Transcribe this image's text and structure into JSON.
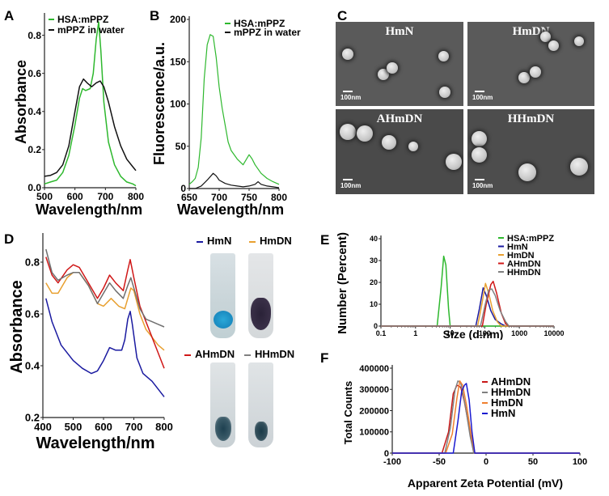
{
  "panels": {
    "A": {
      "label": "A"
    },
    "B": {
      "label": "B"
    },
    "C": {
      "label": "C"
    },
    "D": {
      "label": "D"
    },
    "E": {
      "label": "E"
    },
    "F": {
      "label": "F"
    }
  },
  "sem": {
    "images": [
      {
        "title": "HmN",
        "scale": "100nm"
      },
      {
        "title": "HmDN",
        "scale": "100nm"
      },
      {
        "title": "AHmDN",
        "scale": "100nm"
      },
      {
        "title": "HHmDN",
        "scale": "100nm"
      }
    ]
  },
  "tubes": {
    "legend": [
      {
        "label": "HmN",
        "color": "#1a1aa0"
      },
      {
        "label": "HmDN",
        "color": "#e8a030"
      },
      {
        "label": "AHmDN",
        "color": "#d01818"
      },
      {
        "label": "HHmDN",
        "color": "#808080"
      }
    ]
  },
  "chart_data": [
    {
      "id": "A",
      "type": "line",
      "title": "",
      "xlabel": "Wavelength/nm",
      "ylabel": "Absorbance",
      "xlim": [
        500,
        800
      ],
      "ylim": [
        0.0,
        0.9
      ],
      "xticks": [
        "500",
        "600",
        "700",
        "800"
      ],
      "yticks": [
        "0.0",
        "0.2",
        "0.4",
        "0.6",
        "0.8"
      ],
      "legend_position": "top-left",
      "series": [
        {
          "name": "HSA:mPPZ",
          "color": "#2eb82e",
          "x": [
            500,
            520,
            540,
            560,
            580,
            600,
            615,
            625,
            635,
            650,
            660,
            670,
            678,
            685,
            695,
            710,
            730,
            750,
            770,
            790,
            800
          ],
          "y": [
            0.02,
            0.03,
            0.04,
            0.08,
            0.17,
            0.33,
            0.47,
            0.52,
            0.51,
            0.52,
            0.6,
            0.78,
            0.87,
            0.72,
            0.45,
            0.24,
            0.12,
            0.06,
            0.03,
            0.02,
            0.01
          ]
        },
        {
          "name": "mPPZ in water",
          "color": "#111111",
          "x": [
            500,
            520,
            540,
            560,
            580,
            600,
            615,
            628,
            640,
            655,
            670,
            683,
            695,
            710,
            730,
            750,
            770,
            790,
            800
          ],
          "y": [
            0.06,
            0.065,
            0.08,
            0.12,
            0.22,
            0.4,
            0.53,
            0.57,
            0.55,
            0.53,
            0.55,
            0.56,
            0.53,
            0.45,
            0.32,
            0.22,
            0.15,
            0.11,
            0.09
          ]
        }
      ]
    },
    {
      "id": "B",
      "type": "line",
      "title": "",
      "xlabel": "Wavelength/nm",
      "ylabel": "Fluorescence/a.u.",
      "xlim": [
        650,
        800
      ],
      "ylim": [
        0,
        200
      ],
      "xticks": [
        "650",
        "700",
        "750",
        "800"
      ],
      "yticks": [
        "0",
        "50",
        "100",
        "150",
        "200"
      ],
      "legend_position": "top-right",
      "series": [
        {
          "name": "HSA:mPPZ",
          "color": "#2eb82e",
          "x": [
            650,
            655,
            660,
            665,
            670,
            675,
            680,
            685,
            690,
            695,
            700,
            705,
            710,
            715,
            720,
            730,
            740,
            750,
            755,
            760,
            770,
            780,
            790,
            800
          ],
          "y": [
            5,
            8,
            12,
            25,
            60,
            130,
            170,
            182,
            180,
            155,
            120,
            95,
            75,
            55,
            45,
            35,
            28,
            40,
            35,
            28,
            18,
            12,
            8,
            5
          ]
        },
        {
          "name": "mPPZ in water",
          "color": "#111111",
          "x": [
            650,
            660,
            670,
            680,
            690,
            695,
            700,
            710,
            720,
            730,
            740,
            750,
            760,
            765,
            770,
            780,
            790,
            800
          ],
          "y": [
            0,
            0,
            3,
            10,
            18,
            15,
            10,
            6,
            4,
            3,
            2,
            3,
            5,
            8,
            5,
            3,
            2,
            1
          ]
        }
      ]
    },
    {
      "id": "D",
      "type": "line",
      "title": "",
      "xlabel": "Wavelength/nm",
      "ylabel": "Absorbance",
      "xlim": [
        400,
        800
      ],
      "ylim": [
        0.2,
        0.9
      ],
      "xticks": [
        "400",
        "500",
        "600",
        "700",
        "800"
      ],
      "yticks": [
        "0.2",
        "0.4",
        "0.6",
        "0.8"
      ],
      "series": [
        {
          "name": "HmN",
          "color": "#1a1aa0",
          "x": [
            410,
            430,
            460,
            500,
            530,
            560,
            580,
            600,
            620,
            640,
            660,
            670,
            680,
            688,
            695,
            710,
            730,
            760,
            780,
            800
          ],
          "y": [
            0.66,
            0.57,
            0.48,
            0.42,
            0.39,
            0.37,
            0.38,
            0.42,
            0.47,
            0.46,
            0.46,
            0.5,
            0.58,
            0.61,
            0.56,
            0.43,
            0.37,
            0.34,
            0.31,
            0.28
          ]
        },
        {
          "name": "HmDN",
          "color": "#e8a030",
          "x": [
            410,
            430,
            450,
            480,
            500,
            520,
            550,
            580,
            600,
            625,
            650,
            670,
            690,
            700,
            720,
            740,
            760,
            780,
            800
          ],
          "y": [
            0.72,
            0.68,
            0.68,
            0.74,
            0.76,
            0.76,
            0.71,
            0.64,
            0.63,
            0.66,
            0.63,
            0.62,
            0.7,
            0.69,
            0.6,
            0.54,
            0.51,
            0.48,
            0.46
          ]
        },
        {
          "name": "AHmDN",
          "color": "#d01818",
          "x": [
            410,
            430,
            450,
            480,
            500,
            520,
            550,
            580,
            600,
            620,
            640,
            665,
            680,
            688,
            700,
            720,
            740,
            760,
            780,
            800
          ],
          "y": [
            0.82,
            0.75,
            0.72,
            0.77,
            0.79,
            0.78,
            0.72,
            0.66,
            0.7,
            0.75,
            0.72,
            0.69,
            0.77,
            0.81,
            0.74,
            0.63,
            0.57,
            0.51,
            0.45,
            0.39
          ]
        },
        {
          "name": "HHmDN",
          "color": "#707070",
          "x": [
            410,
            430,
            450,
            480,
            500,
            520,
            550,
            580,
            600,
            620,
            640,
            665,
            680,
            690,
            700,
            720,
            740,
            760,
            780,
            800
          ],
          "y": [
            0.85,
            0.76,
            0.73,
            0.75,
            0.76,
            0.76,
            0.71,
            0.64,
            0.68,
            0.72,
            0.69,
            0.66,
            0.71,
            0.74,
            0.7,
            0.62,
            0.58,
            0.57,
            0.56,
            0.55
          ]
        }
      ]
    },
    {
      "id": "E",
      "type": "line",
      "title": "",
      "xlabel": "Size (d.nm)",
      "ylabel": "Number (Percent)",
      "xscale": "log",
      "xlim": [
        0.1,
        10000
      ],
      "ylim": [
        0,
        40
      ],
      "xticks": [
        "0.1",
        "1",
        "10",
        "100",
        "1000",
        "10000"
      ],
      "yticks": [
        "0",
        "10",
        "20",
        "30",
        "40"
      ],
      "legend_position": "top-right",
      "series": [
        {
          "name": "HSA:mPPZ",
          "color": "#2eb82e",
          "x": [
            0.1,
            4.2,
            5.5,
            6.5,
            7.5,
            9,
            10,
            10000
          ],
          "y": [
            0,
            0,
            18,
            32,
            28,
            8,
            0,
            0
          ]
        },
        {
          "name": "HmN",
          "color": "#1a1aa0",
          "x": [
            0.1,
            55,
            70,
            90,
            110,
            150,
            200,
            300,
            400,
            10000
          ],
          "y": [
            0,
            0,
            8,
            17.5,
            14,
            7,
            3,
            1,
            0,
            0
          ]
        },
        {
          "name": "HmDN",
          "color": "#e8a030",
          "x": [
            0.1,
            62,
            80,
            105,
            130,
            170,
            230,
            300,
            10000
          ],
          "y": [
            0,
            0,
            9,
            19.5,
            15,
            7,
            2,
            0,
            0
          ]
        },
        {
          "name": "AHmDN",
          "color": "#d01818",
          "x": [
            0.1,
            85,
            110,
            150,
            175,
            220,
            300,
            400,
            500,
            10000
          ],
          "y": [
            0,
            0,
            10,
            19,
            20.5,
            15,
            6,
            1,
            0,
            0
          ]
        },
        {
          "name": "HHmDN",
          "color": "#808080",
          "x": [
            0.1,
            75,
            100,
            130,
            160,
            200,
            280,
            400,
            500,
            10000
          ],
          "y": [
            0,
            0,
            9,
            16.5,
            17,
            14,
            7,
            2,
            0,
            0
          ]
        }
      ]
    },
    {
      "id": "F",
      "type": "line",
      "title": "",
      "xlabel": "Apparent Zeta Potential (mV)",
      "ylabel": "Total Counts",
      "xlim": [
        -100,
        100
      ],
      "ylim": [
        0,
        400000
      ],
      "xticks": [
        "-100",
        "-50",
        "0",
        "50",
        "100"
      ],
      "yticks": [
        "0",
        "100000",
        "200000",
        "300000",
        "400000"
      ],
      "legend_position": "top-right",
      "series": [
        {
          "name": "AHmDN",
          "color": "#c81818",
          "x": [
            -100,
            -47,
            -40,
            -35,
            -31,
            -27,
            -23,
            -18,
            -13,
            100
          ],
          "y": [
            0,
            0,
            100000,
            280000,
            320000,
            310000,
            240000,
            120000,
            0,
            0
          ]
        },
        {
          "name": "HHmDN",
          "color": "#808080",
          "x": [
            -100,
            -44,
            -38,
            -33,
            -30,
            -27,
            -22,
            -17,
            -13,
            100
          ],
          "y": [
            0,
            0,
            120000,
            300000,
            340000,
            330000,
            220000,
            80000,
            0,
            0
          ]
        },
        {
          "name": "HmDN",
          "color": "#f08030",
          "x": [
            -100,
            -43,
            -36,
            -31,
            -28,
            -25,
            -21,
            -16,
            -12,
            100
          ],
          "y": [
            0,
            0,
            90000,
            260000,
            340000,
            320000,
            230000,
            90000,
            0,
            0
          ]
        },
        {
          "name": "HmN",
          "color": "#1a1ad0",
          "x": [
            -100,
            -35,
            -30,
            -26,
            -23,
            -21,
            -18,
            -15,
            -12,
            100
          ],
          "y": [
            0,
            0,
            150000,
            290000,
            320000,
            328000,
            250000,
            100000,
            0,
            0
          ]
        }
      ]
    }
  ]
}
